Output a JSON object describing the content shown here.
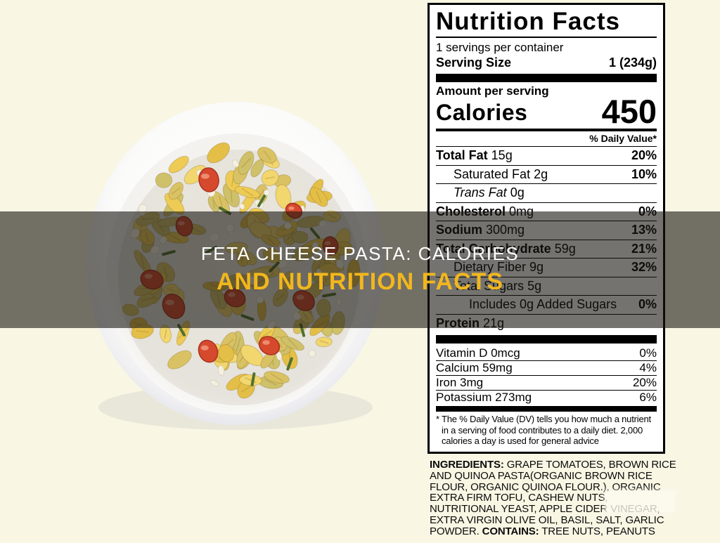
{
  "page": {
    "background_color": "#F9F6E4"
  },
  "title_banner": {
    "line1": "FETA CHEESE PASTA: CALORIES",
    "line2": "AND NUTRITION FACTS",
    "line1_color": "#FFFFFF",
    "line2_color": "#F2B71D",
    "overlay_color": "rgba(24,22,16,0.60)"
  },
  "nutrition_label": {
    "title": "Nutrition Facts",
    "servings_per_container": "1 servings per container",
    "serving_size_label": "Serving Size",
    "serving_size_value": "1 (234g)",
    "amount_per_serving": "Amount per serving",
    "calories_label": "Calories",
    "calories_value": "450",
    "daily_value_header": "% Daily Value*",
    "nutrient_rows": [
      {
        "name": "Total Fat",
        "amount": "15g",
        "dv": "20%",
        "style": "bold",
        "indent": 0
      },
      {
        "name": "Saturated Fat",
        "amount": "2g",
        "dv": "10%",
        "style": "regular",
        "indent": 1
      },
      {
        "name": "Trans Fat",
        "amount": "0g",
        "dv": "",
        "style": "italic",
        "indent": 1
      },
      {
        "name": "Cholesterol",
        "amount": "0mg",
        "dv": "0%",
        "style": "bold",
        "indent": 0
      },
      {
        "name": "Sodium",
        "amount": "300mg",
        "dv": "13%",
        "style": "bold",
        "indent": 0
      },
      {
        "name": "Total Carbohydrate",
        "amount": "59g",
        "dv": "21%",
        "style": "bold",
        "indent": 0
      },
      {
        "name": "Dietary Fiber",
        "amount": "9g",
        "dv": "32%",
        "style": "regular",
        "indent": 1
      },
      {
        "name": "Total Sugars",
        "amount": "5g",
        "dv": "",
        "style": "regular",
        "indent": 1
      },
      {
        "name": "Includes 0g Added Sugars",
        "amount": "",
        "dv": "0%",
        "style": "regular",
        "indent": 2
      },
      {
        "name": "Protein",
        "amount": "21g",
        "dv": "",
        "style": "bold",
        "indent": 0
      }
    ],
    "micronutrient_rows": [
      {
        "text": "Vitamin D 0mcg",
        "dv": "0%"
      },
      {
        "text": "Calcium 59mg",
        "dv": "4%"
      },
      {
        "text": "Iron 3mg",
        "dv": "20%"
      },
      {
        "text": "Potassium 273mg",
        "dv": "6%"
      }
    ],
    "footnote": "* The % Daily Value (DV) tells you how much a nutrient in a serving of food contributes to a daily diet. 2,000 calories a day is used for general advice"
  },
  "ingredients": {
    "label": "INGREDIENTS:",
    "text": " GRAPE TOMATOES, BROWN RICE AND QUINOA PASTA(ORGANIC BROWN RICE FLOUR, ORGANIC QUINOA FLOUR.), ORGANIC EXTRA FIRM TOFU, CASHEW NUTS, NUTRITIONAL YEAST, APPLE CIDER VINEGAR, EXTRA VIRGIN OLIVE OIL, BASIL, SALT, GARLIC POWDER. ",
    "contains_label": "CONTAINS:",
    "contains_text": " TREE NUTS, PEANUTS"
  },
  "photo": {
    "bowl_color": "#FDFDFD",
    "bowl_shadow_color": "#DEDFE6",
    "pasta_colors": [
      "#EDCB55",
      "#E4BF48",
      "#F2D66E",
      "#D9C264",
      "#CFC06A"
    ],
    "crumble_color": "#F5EFE0",
    "tomato_color": "#D6492D",
    "tomato_edge_color": "#A93220",
    "basil_color": "#53702F"
  }
}
